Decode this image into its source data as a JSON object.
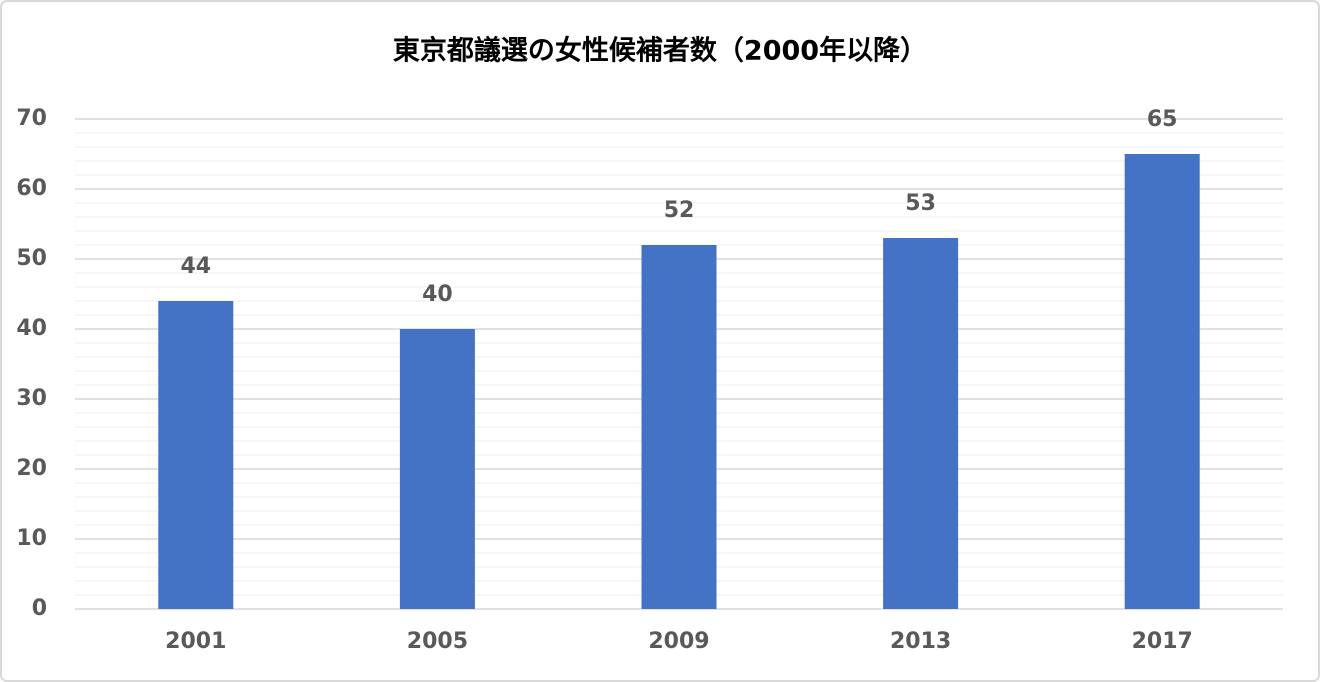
{
  "chart_data": {
    "type": "bar",
    "title": "東京都議選の女性候補者数（2000年以降）",
    "categories": [
      "2001",
      "2005",
      "2009",
      "2013",
      "2017"
    ],
    "values": [
      44,
      40,
      52,
      53,
      65
    ],
    "color": "#4472c4",
    "ylim": [
      0,
      70
    ],
    "yticks": [
      0,
      10,
      20,
      30,
      40,
      50,
      60,
      70
    ],
    "minor_yticks": [
      2,
      4,
      6,
      8,
      12,
      14,
      16,
      18,
      22,
      24,
      26,
      28,
      32,
      34,
      36,
      38,
      42,
      44,
      46,
      48,
      52,
      54,
      56,
      58,
      62,
      64,
      66,
      68
    ],
    "grid": true,
    "data_labels": true
  }
}
